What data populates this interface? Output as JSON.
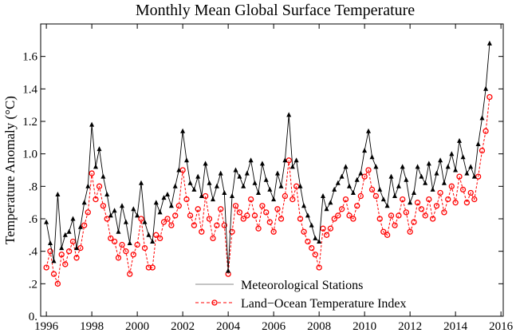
{
  "chart_data": {
    "type": "line",
    "title": "Monthly Mean Global Surface Temperature",
    "xlabel": "",
    "ylabel": "Temperature Anomaly (°C)",
    "xlim": [
      1995.75,
      2016.1
    ],
    "ylim": [
      0.0,
      1.8
    ],
    "x_ticks": [
      1996,
      1998,
      2000,
      2002,
      2004,
      2006,
      2008,
      2010,
      2012,
      2014,
      2016
    ],
    "x_tick_labels": [
      "1996",
      "1998",
      "2000",
      "2002",
      "2004",
      "2006",
      "2008",
      "2010",
      "2012",
      "2014",
      "2016"
    ],
    "y_ticks": [
      0.0,
      0.2,
      0.4,
      0.6,
      0.8,
      1.0,
      1.2,
      1.4,
      1.6
    ],
    "y_tick_labels": [
      "0.",
      ".2",
      ".4",
      ".6",
      ".8",
      "1.0",
      "1.2",
      "1.4",
      "1.6"
    ],
    "grid": false,
    "legend_position": "bottom-center",
    "series": [
      {
        "name": "Meteorological Stations",
        "color": "#000000",
        "marker": "triangle",
        "line_style": "solid",
        "x": [
          1996.0,
          1996.17,
          1996.33,
          1996.5,
          1996.67,
          1996.83,
          1997.0,
          1997.17,
          1997.33,
          1997.5,
          1997.67,
          1997.83,
          1998.0,
          1998.17,
          1998.33,
          1998.5,
          1998.67,
          1998.83,
          1999.0,
          1999.17,
          1999.33,
          1999.5,
          1999.67,
          1999.83,
          2000.0,
          2000.17,
          2000.33,
          2000.5,
          2000.67,
          2000.83,
          2001.0,
          2001.17,
          2001.33,
          2001.5,
          2001.67,
          2001.83,
          2002.0,
          2002.17,
          2002.33,
          2002.5,
          2002.67,
          2002.83,
          2003.0,
          2003.17,
          2003.33,
          2003.5,
          2003.67,
          2003.83,
          2004.0,
          2004.17,
          2004.33,
          2004.5,
          2004.67,
          2004.83,
          2005.0,
          2005.17,
          2005.33,
          2005.5,
          2005.67,
          2005.83,
          2006.0,
          2006.17,
          2006.33,
          2006.5,
          2006.67,
          2006.83,
          2007.0,
          2007.17,
          2007.33,
          2007.5,
          2007.67,
          2007.83,
          2008.0,
          2008.17,
          2008.33,
          2008.5,
          2008.67,
          2008.83,
          2009.0,
          2009.17,
          2009.33,
          2009.5,
          2009.67,
          2009.83,
          2010.0,
          2010.17,
          2010.33,
          2010.5,
          2010.67,
          2010.83,
          2011.0,
          2011.17,
          2011.33,
          2011.5,
          2011.67,
          2011.83,
          2012.0,
          2012.17,
          2012.33,
          2012.5,
          2012.67,
          2012.83,
          2013.0,
          2013.17,
          2013.33,
          2013.5,
          2013.67,
          2013.83,
          2014.0,
          2014.17,
          2014.33,
          2014.5,
          2014.67,
          2014.83,
          2015.0,
          2015.17,
          2015.33,
          2015.5
        ],
        "values": [
          0.58,
          0.45,
          0.34,
          0.75,
          0.42,
          0.5,
          0.52,
          0.6,
          0.42,
          0.55,
          0.7,
          0.8,
          1.18,
          0.92,
          1.03,
          0.86,
          0.75,
          0.62,
          0.65,
          0.52,
          0.68,
          0.58,
          0.45,
          0.66,
          0.62,
          0.82,
          0.58,
          0.5,
          0.46,
          0.7,
          0.64,
          0.73,
          0.75,
          0.68,
          0.8,
          0.9,
          1.14,
          0.96,
          0.82,
          0.78,
          0.86,
          0.74,
          0.94,
          0.82,
          0.72,
          0.8,
          0.88,
          0.76,
          0.28,
          0.74,
          0.9,
          0.86,
          0.8,
          0.88,
          0.96,
          0.82,
          0.76,
          0.94,
          0.84,
          0.78,
          0.72,
          0.88,
          0.8,
          0.96,
          1.24,
          0.92,
          0.96,
          0.8,
          0.68,
          0.62,
          0.56,
          0.48,
          0.46,
          0.74,
          0.66,
          0.7,
          0.78,
          0.82,
          0.86,
          0.92,
          0.8,
          0.76,
          0.84,
          0.88,
          1.02,
          1.14,
          0.98,
          0.92,
          0.78,
          0.72,
          0.68,
          0.86,
          0.74,
          0.8,
          0.92,
          0.84,
          0.7,
          0.76,
          0.92,
          0.86,
          0.82,
          0.94,
          0.78,
          0.88,
          0.96,
          0.82,
          0.92,
          1.0,
          0.9,
          1.08,
          0.98,
          0.88,
          0.92,
          0.86,
          1.06,
          1.22,
          1.4,
          1.68
        ]
      },
      {
        "name": "Land−Ocean Temperature Index",
        "color": "#ff0000",
        "marker": "circle",
        "line_style": "dashed",
        "x": [
          1996.0,
          1996.17,
          1996.33,
          1996.5,
          1996.67,
          1996.83,
          1997.0,
          1997.17,
          1997.33,
          1997.5,
          1997.67,
          1997.83,
          1998.0,
          1998.17,
          1998.33,
          1998.5,
          1998.67,
          1998.83,
          1999.0,
          1999.17,
          1999.33,
          1999.5,
          1999.67,
          1999.83,
          2000.0,
          2000.17,
          2000.33,
          2000.5,
          2000.67,
          2000.83,
          2001.0,
          2001.17,
          2001.33,
          2001.5,
          2001.67,
          2001.83,
          2002.0,
          2002.17,
          2002.33,
          2002.5,
          2002.67,
          2002.83,
          2003.0,
          2003.17,
          2003.33,
          2003.5,
          2003.67,
          2003.83,
          2004.0,
          2004.17,
          2004.33,
          2004.5,
          2004.67,
          2004.83,
          2005.0,
          2005.17,
          2005.33,
          2005.5,
          2005.67,
          2005.83,
          2006.0,
          2006.17,
          2006.33,
          2006.5,
          2006.67,
          2006.83,
          2007.0,
          2007.17,
          2007.33,
          2007.5,
          2007.67,
          2007.83,
          2008.0,
          2008.17,
          2008.33,
          2008.5,
          2008.67,
          2008.83,
          2009.0,
          2009.17,
          2009.33,
          2009.5,
          2009.67,
          2009.83,
          2010.0,
          2010.17,
          2010.33,
          2010.5,
          2010.67,
          2010.83,
          2011.0,
          2011.17,
          2011.33,
          2011.5,
          2011.67,
          2011.83,
          2012.0,
          2012.17,
          2012.33,
          2012.5,
          2012.67,
          2012.83,
          2013.0,
          2013.17,
          2013.33,
          2013.5,
          2013.67,
          2013.83,
          2014.0,
          2014.17,
          2014.33,
          2014.5,
          2014.67,
          2014.83,
          2015.0,
          2015.17,
          2015.33,
          2015.5
        ],
        "values": [
          0.3,
          0.4,
          0.26,
          0.2,
          0.38,
          0.32,
          0.4,
          0.46,
          0.36,
          0.42,
          0.56,
          0.64,
          0.88,
          0.72,
          0.8,
          0.68,
          0.6,
          0.48,
          0.46,
          0.36,
          0.44,
          0.4,
          0.26,
          0.38,
          0.44,
          0.6,
          0.42,
          0.3,
          0.3,
          0.5,
          0.48,
          0.58,
          0.6,
          0.56,
          0.62,
          0.68,
          0.9,
          0.72,
          0.62,
          0.56,
          0.66,
          0.52,
          0.74,
          0.6,
          0.48,
          0.56,
          0.66,
          0.56,
          0.26,
          0.52,
          0.68,
          0.64,
          0.6,
          0.62,
          0.72,
          0.62,
          0.54,
          0.68,
          0.64,
          0.58,
          0.52,
          0.66,
          0.6,
          0.74,
          0.96,
          0.72,
          0.8,
          0.6,
          0.52,
          0.46,
          0.42,
          0.38,
          0.3,
          0.54,
          0.5,
          0.54,
          0.6,
          0.62,
          0.66,
          0.72,
          0.62,
          0.6,
          0.68,
          0.74,
          0.86,
          0.9,
          0.78,
          0.74,
          0.6,
          0.52,
          0.5,
          0.62,
          0.56,
          0.62,
          0.72,
          0.64,
          0.52,
          0.58,
          0.7,
          0.66,
          0.62,
          0.72,
          0.6,
          0.68,
          0.76,
          0.64,
          0.72,
          0.8,
          0.7,
          0.86,
          0.78,
          0.7,
          0.76,
          0.72,
          0.86,
          1.02,
          1.14,
          1.35
        ]
      }
    ]
  }
}
